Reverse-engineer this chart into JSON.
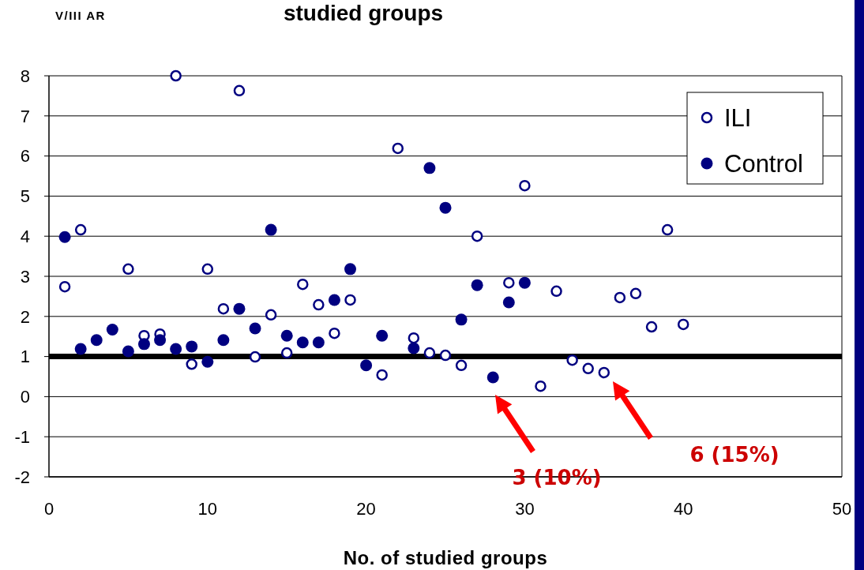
{
  "chart_data": {
    "type": "scatter",
    "title": "studied groups",
    "ylabel": "V/III AR",
    "xlabel": "No. of studied groups",
    "xlim": [
      0,
      50
    ],
    "xticks": [
      0,
      10,
      20,
      30,
      40,
      50
    ],
    "ylim": [
      -2,
      8
    ],
    "yticks": [
      -2,
      -1,
      0,
      1,
      2,
      3,
      4,
      5,
      6,
      7,
      8
    ],
    "grid": "y",
    "legend": "top right",
    "marker": "circle",
    "series": [
      {
        "name": "ILI",
        "color": "#000080",
        "x": [
          1,
          2,
          5,
          6,
          7,
          8,
          9,
          10,
          11,
          12,
          13,
          14,
          15,
          16,
          17,
          18,
          19,
          21,
          22,
          23,
          24,
          25,
          26,
          27,
          29,
          30,
          31,
          32,
          33,
          34,
          35,
          36,
          37,
          38,
          39,
          40
        ],
        "values": [
          2.74,
          4.16,
          3.18,
          1.52,
          1.56,
          8.0,
          0.81,
          3.18,
          2.19,
          7.63,
          0.99,
          2.04,
          1.09,
          2.8,
          2.29,
          1.58,
          2.41,
          0.54,
          6.19,
          1.46,
          1.09,
          1.03,
          0.78,
          4.0,
          2.84,
          5.26,
          0.26,
          2.63,
          0.91,
          0.7,
          0.6,
          2.47,
          2.57,
          1.74,
          4.16,
          1.8
        ]
      },
      {
        "name": "Control",
        "color": "#000080",
        "x": [
          1,
          2,
          3,
          4,
          5,
          6,
          7,
          8,
          9,
          10,
          11,
          12,
          13,
          14,
          15,
          16,
          17,
          18,
          19,
          20,
          21,
          23,
          24,
          25,
          26,
          27,
          28,
          29,
          30
        ],
        "values": [
          3.98,
          1.19,
          1.41,
          1.67,
          1.13,
          1.31,
          1.41,
          1.19,
          1.25,
          0.87,
          1.41,
          2.19,
          1.7,
          4.16,
          1.52,
          1.35,
          1.35,
          2.41,
          3.18,
          0.78,
          1.52,
          1.21,
          5.7,
          4.71,
          1.92,
          2.78,
          0.48,
          2.35,
          2.84
        ]
      }
    ],
    "ref_lines": [
      {
        "axis": "y",
        "value": 1,
        "color": "#000000"
      }
    ],
    "annotations": [
      "3 (10%)",
      "6 (15%)"
    ]
  }
}
